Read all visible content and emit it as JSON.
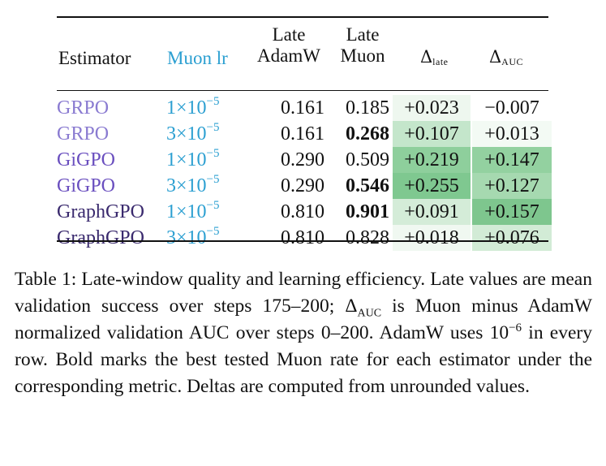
{
  "table": {
    "headers": {
      "estimator": "Estimator",
      "muon_lr": "Muon lr",
      "late_adamw_top": "Late",
      "late_adamw_bottom": "AdamW",
      "late_muon_top": "Late",
      "late_muon_bottom": "Muon",
      "delta_late_symbol": "Δ",
      "delta_late_sub": "late",
      "delta_auc_symbol": "Δ",
      "delta_auc_sub": "AUC"
    },
    "lr_mantissa_sep": "×10",
    "lr_exponent": "−5",
    "rows": [
      {
        "estimator": "GRPO",
        "estimator_color": "#8a7bd1",
        "lr_base": "1",
        "late_adamw": "0.161",
        "late_muon": "0.185",
        "muon_bold": false,
        "delta_late": "+0.023",
        "delta_auc": "−0.007",
        "delta_late_bg": "#eef7ef",
        "delta_auc_bg": "#ffffff"
      },
      {
        "estimator": "GRPO",
        "estimator_color": "#8a7bd1",
        "lr_base": "3",
        "late_adamw": "0.161",
        "late_muon": "0.268",
        "muon_bold": true,
        "delta_late": "+0.107",
        "delta_auc": "+0.013",
        "delta_late_bg": "#c4e6cb",
        "delta_auc_bg": "#f3faf4"
      },
      {
        "estimator": "GiGPO",
        "estimator_color": "#6a4fbf",
        "lr_base": "1",
        "late_adamw": "0.290",
        "late_muon": "0.509",
        "muon_bold": false,
        "delta_late": "+0.219",
        "delta_auc": "+0.147",
        "delta_late_bg": "#8ecf9c",
        "delta_auc_bg": "#93d1a0"
      },
      {
        "estimator": "GiGPO",
        "estimator_color": "#6a4fbf",
        "lr_base": "3",
        "late_adamw": "0.290",
        "late_muon": "0.546",
        "muon_bold": true,
        "delta_late": "+0.255",
        "delta_auc": "+0.127",
        "delta_late_bg": "#7fc890",
        "delta_auc_bg": "#a6d9b0"
      },
      {
        "estimator": "GraphGPO",
        "estimator_color": "#3a2a6e",
        "lr_base": "1",
        "late_adamw": "0.810",
        "late_muon": "0.901",
        "muon_bold": true,
        "delta_late": "+0.091",
        "delta_auc": "+0.157",
        "delta_late_bg": "#d4ecd8",
        "delta_auc_bg": "#7ec68e"
      },
      {
        "estimator": "GraphGPO",
        "estimator_color": "#3a2a6e",
        "lr_base": "3",
        "late_adamw": "0.810",
        "late_muon": "0.828",
        "muon_bold": false,
        "delta_late": "+0.018",
        "delta_auc": "+0.076",
        "delta_late_bg": "#f0f8f1",
        "delta_auc_bg": "#d2ebd6"
      }
    ],
    "lr_color": "#2b9fd1"
  },
  "caption": {
    "p1": "Table 1: Late-window quality and learning efficiency. Late values are mean validation success over steps 175–200; ",
    "delta_symbol": "Δ",
    "delta_sub": "AUC",
    "p2": " is Muon minus AdamW normalized validation AUC over steps 0–200. AdamW uses ",
    "adamw_lr_base": "10",
    "adamw_lr_exp": "−6",
    "p3": " in every row. Bold marks the best tested Muon rate for each estimator under the corresponding metric. Deltas are computed from unrounded values."
  }
}
